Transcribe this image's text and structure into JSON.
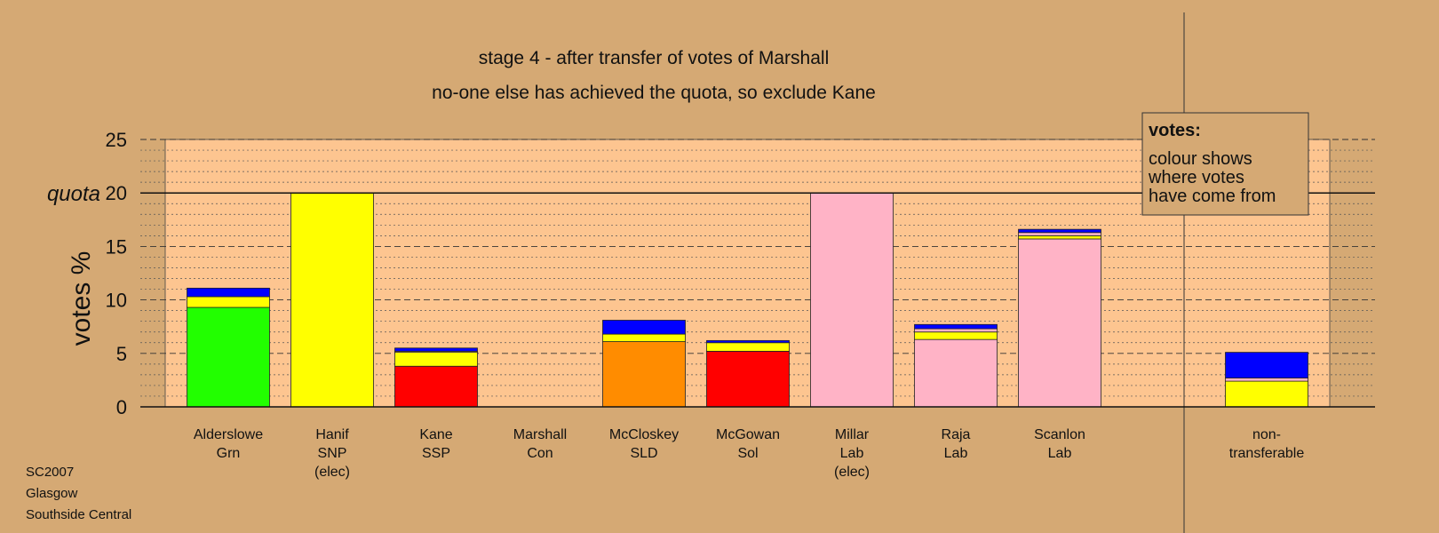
{
  "chart_data": {
    "type": "bar",
    "title": "stage 4 - after transfer of votes of Marshall",
    "subtitle": "no-one else has achieved the quota, so exclude Kane",
    "ylabel": "votes %",
    "quota_label": "quota",
    "quota": 20,
    "ylim": [
      0,
      25
    ],
    "yticks": [
      0,
      5,
      10,
      15,
      20,
      25
    ],
    "grid": "dashed major every 5, dotted minor every 1",
    "categories": [
      {
        "lines": [
          "Alderslowe",
          "Grn"
        ]
      },
      {
        "lines": [
          "Hanif",
          "SNP",
          "(elec)"
        ]
      },
      {
        "lines": [
          "Kane",
          "SSP"
        ]
      },
      {
        "lines": [
          "Marshall",
          "Con"
        ]
      },
      {
        "lines": [
          "McCloskey",
          "SLD"
        ]
      },
      {
        "lines": [
          "McGowan",
          "Sol"
        ]
      },
      {
        "lines": [
          "Millar",
          "Lab",
          "(elec)"
        ]
      },
      {
        "lines": [
          "Raja",
          "Lab"
        ]
      },
      {
        "lines": [
          "Scanlon",
          "Lab"
        ]
      }
    ],
    "nontransferable": {
      "lines": [
        "non-",
        "transferable"
      ],
      "segments": [
        {
          "color": "#ffff00",
          "value": 2.4
        },
        {
          "color": "#ffb3c6",
          "value": 0.3
        },
        {
          "color": "#0000ff",
          "value": 2.4
        }
      ]
    },
    "stacks": [
      [
        {
          "color": "#22ff00",
          "value": 9.3
        },
        {
          "color": "#ffff00",
          "value": 1.0
        },
        {
          "color": "#0000ff",
          "value": 0.8
        }
      ],
      [
        {
          "color": "#ffff00",
          "value": 20.0
        }
      ],
      [
        {
          "color": "#ff0000",
          "value": 3.8
        },
        {
          "color": "#ffff00",
          "value": 1.3
        },
        {
          "color": "#ffb3c6",
          "value": 0.1
        },
        {
          "color": "#0000ff",
          "value": 0.3
        }
      ],
      [],
      [
        {
          "color": "#ff8c00",
          "value": 6.1
        },
        {
          "color": "#ffff00",
          "value": 0.7
        },
        {
          "color": "#0000ff",
          "value": 1.3
        }
      ],
      [
        {
          "color": "#ff0000",
          "value": 5.2
        },
        {
          "color": "#ffff00",
          "value": 0.8
        },
        {
          "color": "#0000ff",
          "value": 0.2
        }
      ],
      [
        {
          "color": "#ffb3c6",
          "value": 20.0
        }
      ],
      [
        {
          "color": "#ffb3c6",
          "value": 6.3
        },
        {
          "color": "#ffff00",
          "value": 0.7
        },
        {
          "color": "#ffb3c6",
          "value": 0.3
        },
        {
          "color": "#0000ff",
          "value": 0.4
        }
      ],
      [
        {
          "color": "#ffb3c6",
          "value": 15.7
        },
        {
          "color": "#ffff00",
          "value": 0.3
        },
        {
          "color": "#ffb3c6",
          "value": 0.3
        },
        {
          "color": "#0000ff",
          "value": 0.3
        }
      ]
    ],
    "legend": {
      "title": "votes:",
      "lines": [
        "colour shows",
        "where votes",
        "have come from"
      ],
      "placement": "top-right"
    },
    "footer": [
      "SC2007",
      "Glasgow",
      "Southside Central"
    ],
    "colors": {
      "background": "#d5a974",
      "plot_area": "#fdc590"
    }
  }
}
